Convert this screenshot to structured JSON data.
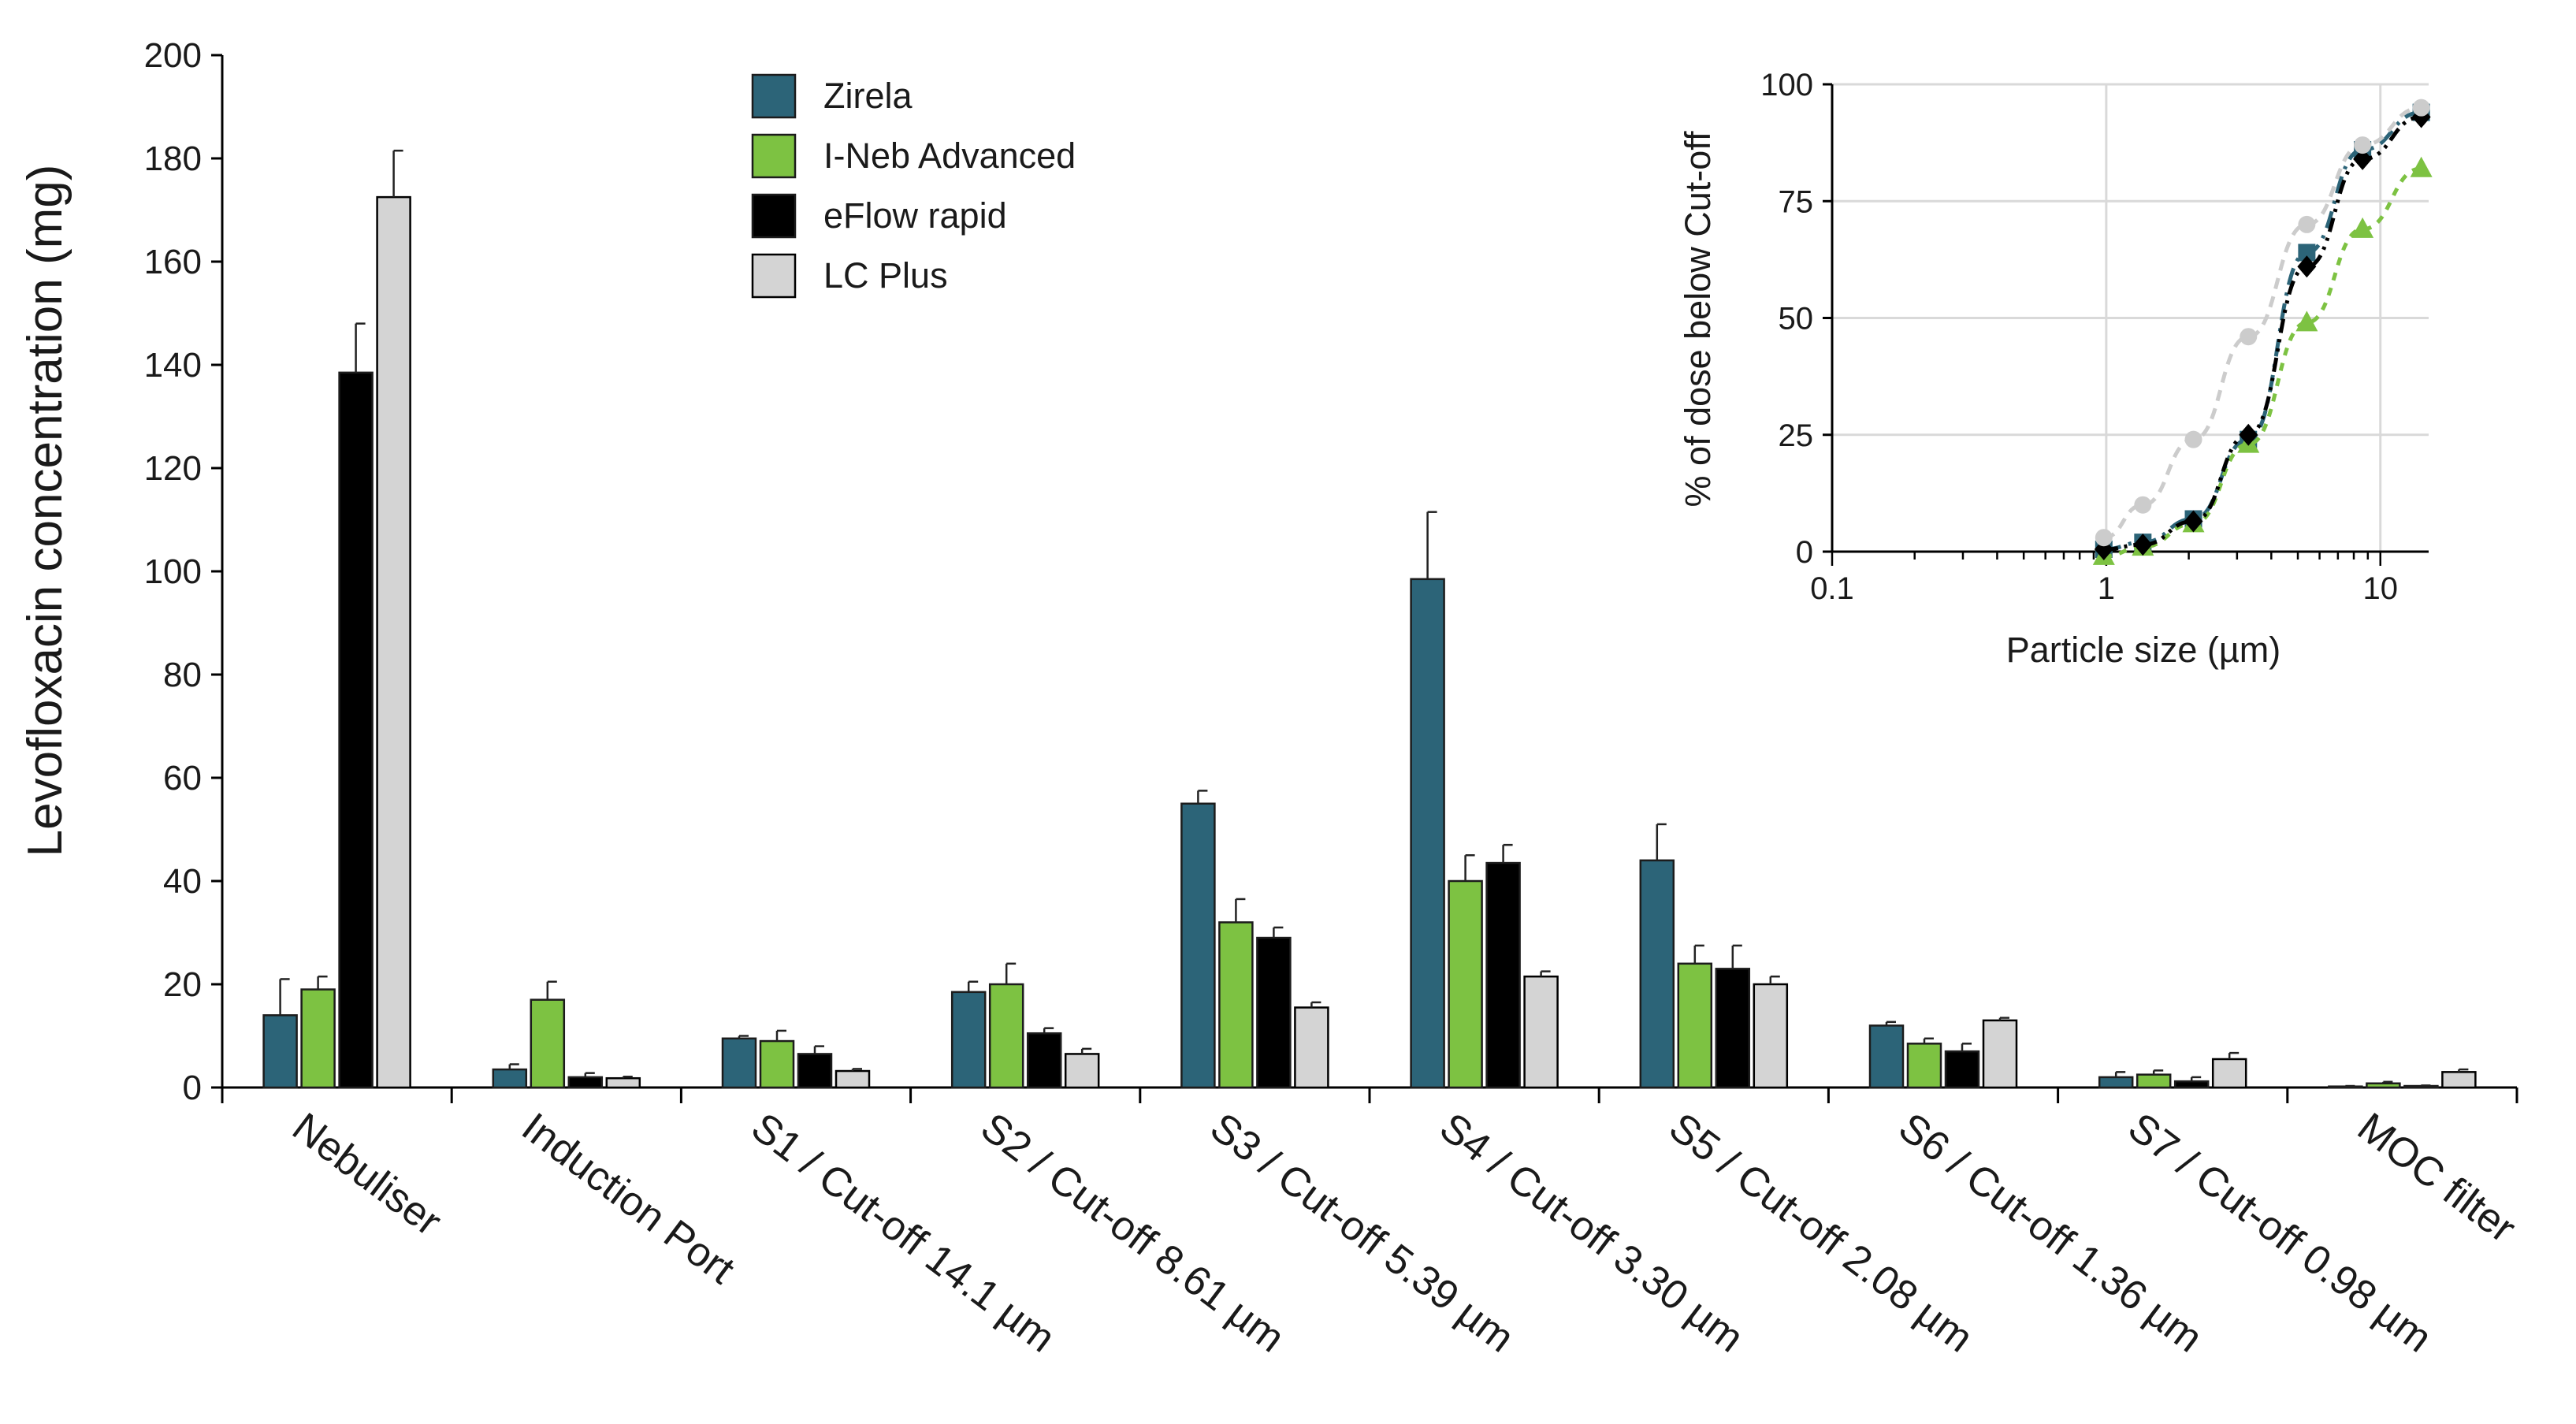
{
  "chart_data": [
    {
      "type": "bar",
      "title": "",
      "xlabel": "",
      "ylabel": "Levofloxacin concentration (mg)",
      "ylim": [
        0,
        200
      ],
      "yticks": [
        0,
        20,
        40,
        60,
        80,
        100,
        120,
        140,
        160,
        180,
        200
      ],
      "legend_position": "top-center",
      "categories": [
        "Nebuliser",
        "Induction Port",
        "S1 / Cut-off 14.1 µm",
        "S2 / Cut-off 8.61 µm",
        "S3 / Cut-off 5.39 µm",
        "S4 / Cut-off 3.30  µm",
        "S5 / Cut-off 2.08 µm",
        "S6 / Cut-off 1.36 µm",
        "S7 / Cut-off 0.98 µm",
        "MOC filter"
      ],
      "series": [
        {
          "name": "Zirela",
          "color": "#2c6478",
          "values": [
            14,
            3.5,
            9.5,
            18.5,
            55,
            98.5,
            44,
            12,
            2,
            0.2
          ],
          "errors": [
            7,
            1,
            0.5,
            2,
            2.5,
            13,
            7,
            0.7,
            1,
            0.1
          ]
        },
        {
          "name": "I-Neb Advanced",
          "color": "#7dc242",
          "values": [
            19,
            17,
            9,
            20,
            32,
            40,
            24,
            8.5,
            2.5,
            0.8
          ],
          "errors": [
            2.5,
            3.5,
            2,
            4,
            4.5,
            5,
            3.5,
            1,
            0.8,
            0.3
          ]
        },
        {
          "name": "eFlow rapid",
          "color": "#000000",
          "values": [
            138.5,
            2,
            6.5,
            10.5,
            29,
            43.5,
            23,
            7,
            1.2,
            0.3
          ],
          "errors": [
            9.5,
            0.8,
            1.5,
            1,
            2,
            3.5,
            4.5,
            1.5,
            0.8,
            0.1
          ]
        },
        {
          "name": "LC Plus",
          "color": "#d4d4d4",
          "values": [
            172.5,
            1.8,
            3.2,
            6.5,
            15.5,
            21.5,
            20,
            13,
            5.5,
            3
          ],
          "errors": [
            9,
            0.3,
            0.4,
            1,
            1,
            1,
            1.5,
            0.5,
            1.2,
            0.5
          ]
        }
      ]
    },
    {
      "type": "line",
      "title": "",
      "xlabel": "Particle size  (µm)",
      "ylabel": "% of dose below Cut-off",
      "xscale": "log",
      "xlim": [
        0.1,
        15
      ],
      "ylim": [
        0,
        100
      ],
      "xticks": [
        0.1,
        1,
        10
      ],
      "xtick_labels": [
        "0.1",
        "1",
        "10"
      ],
      "yticks": [
        0,
        25,
        50,
        75,
        100
      ],
      "grid": true,
      "x": [
        0.98,
        1.36,
        2.08,
        3.3,
        5.39,
        8.61,
        14.1
      ],
      "series": [
        {
          "name": "Zirela",
          "color": "#2c6478",
          "marker": "square",
          "values": [
            0.5,
            2,
            7,
            24,
            64,
            86,
            94
          ]
        },
        {
          "name": "I-Neb Advanced",
          "color": "#7dc242",
          "marker": "triangle",
          "values": [
            -1,
            1,
            6,
            23,
            49,
            69,
            82
          ]
        },
        {
          "name": "eFlow rapid",
          "color": "#000000",
          "marker": "diamond",
          "values": [
            0.5,
            1.5,
            6.5,
            25,
            61,
            84,
            93
          ]
        },
        {
          "name": "LC Plus",
          "color": "#cccccc",
          "marker": "circle",
          "values": [
            3,
            10,
            24,
            46,
            70,
            87,
            95
          ]
        }
      ]
    }
  ]
}
